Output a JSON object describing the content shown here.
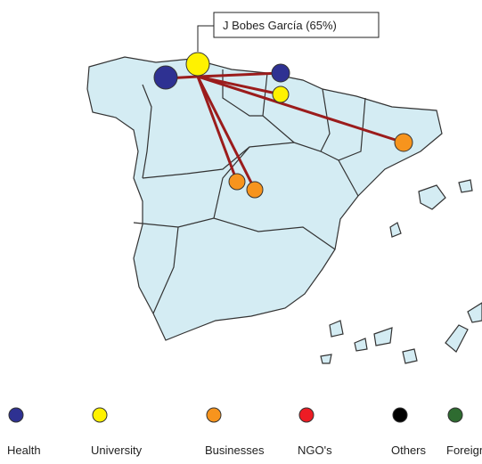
{
  "callout": "J Bobes García (65%)",
  "legend": [
    {
      "label": "Health",
      "color": "#2e3192"
    },
    {
      "label": "University",
      "color": "#fff200"
    },
    {
      "label": "Businesses",
      "color": "#f7941d"
    },
    {
      "label": "NGO's",
      "color": "#ed1c24"
    },
    {
      "label": "Others",
      "color": "#000000"
    },
    {
      "label": "Foreign",
      "color": "#2e6b30"
    }
  ]
}
